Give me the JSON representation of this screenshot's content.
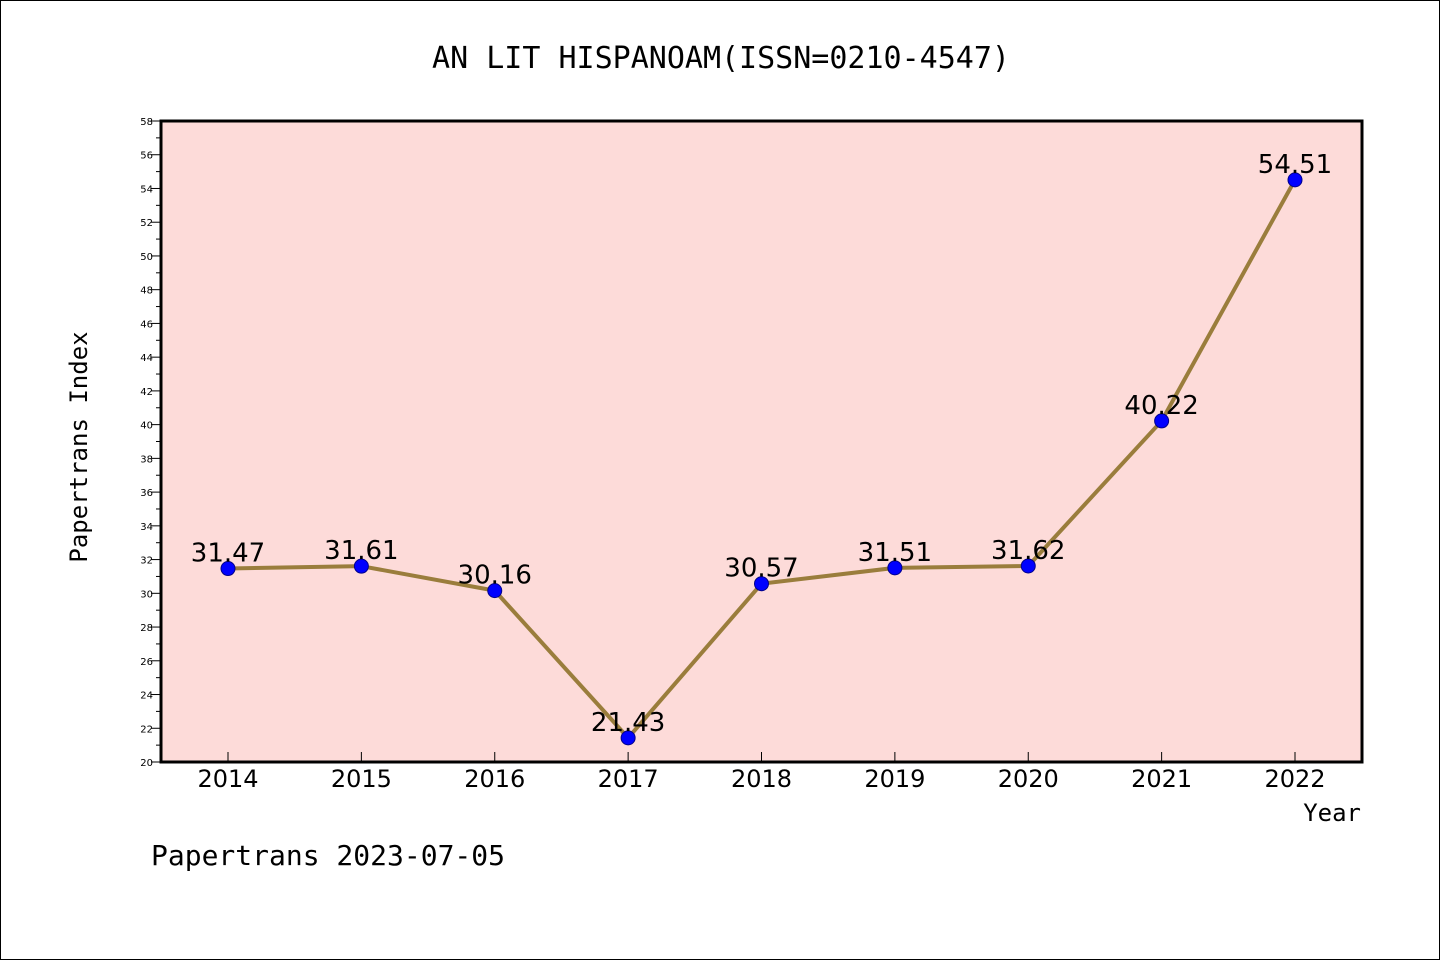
{
  "chart_data": {
    "type": "line",
    "title": "AN LIT HISPANOAM(ISSN=0210-4547)",
    "xlabel": "Year",
    "ylabel": "Papertrans Index",
    "categories": [
      "2014",
      "2015",
      "2016",
      "2017",
      "2018",
      "2019",
      "2020",
      "2021",
      "2022"
    ],
    "values": [
      31.47,
      31.61,
      30.16,
      21.43,
      30.57,
      31.51,
      31.62,
      40.22,
      54.51
    ],
    "value_labels": [
      "31.47",
      "31.61",
      "30.16",
      "21.43",
      "30.57",
      "31.51",
      "31.62",
      "40.22",
      "54.51"
    ],
    "ylim": [
      20,
      58
    ],
    "yticks": [
      20,
      22,
      24,
      26,
      28,
      30,
      32,
      34,
      36,
      38,
      40,
      42,
      44,
      46,
      48,
      50,
      52,
      54,
      56,
      58
    ],
    "grid": false,
    "colors": {
      "plot_background": "#fddbd9",
      "line": "#9a7d3c",
      "marker": "#0000ff"
    }
  },
  "footer": "Papertrans 2023-07-05"
}
